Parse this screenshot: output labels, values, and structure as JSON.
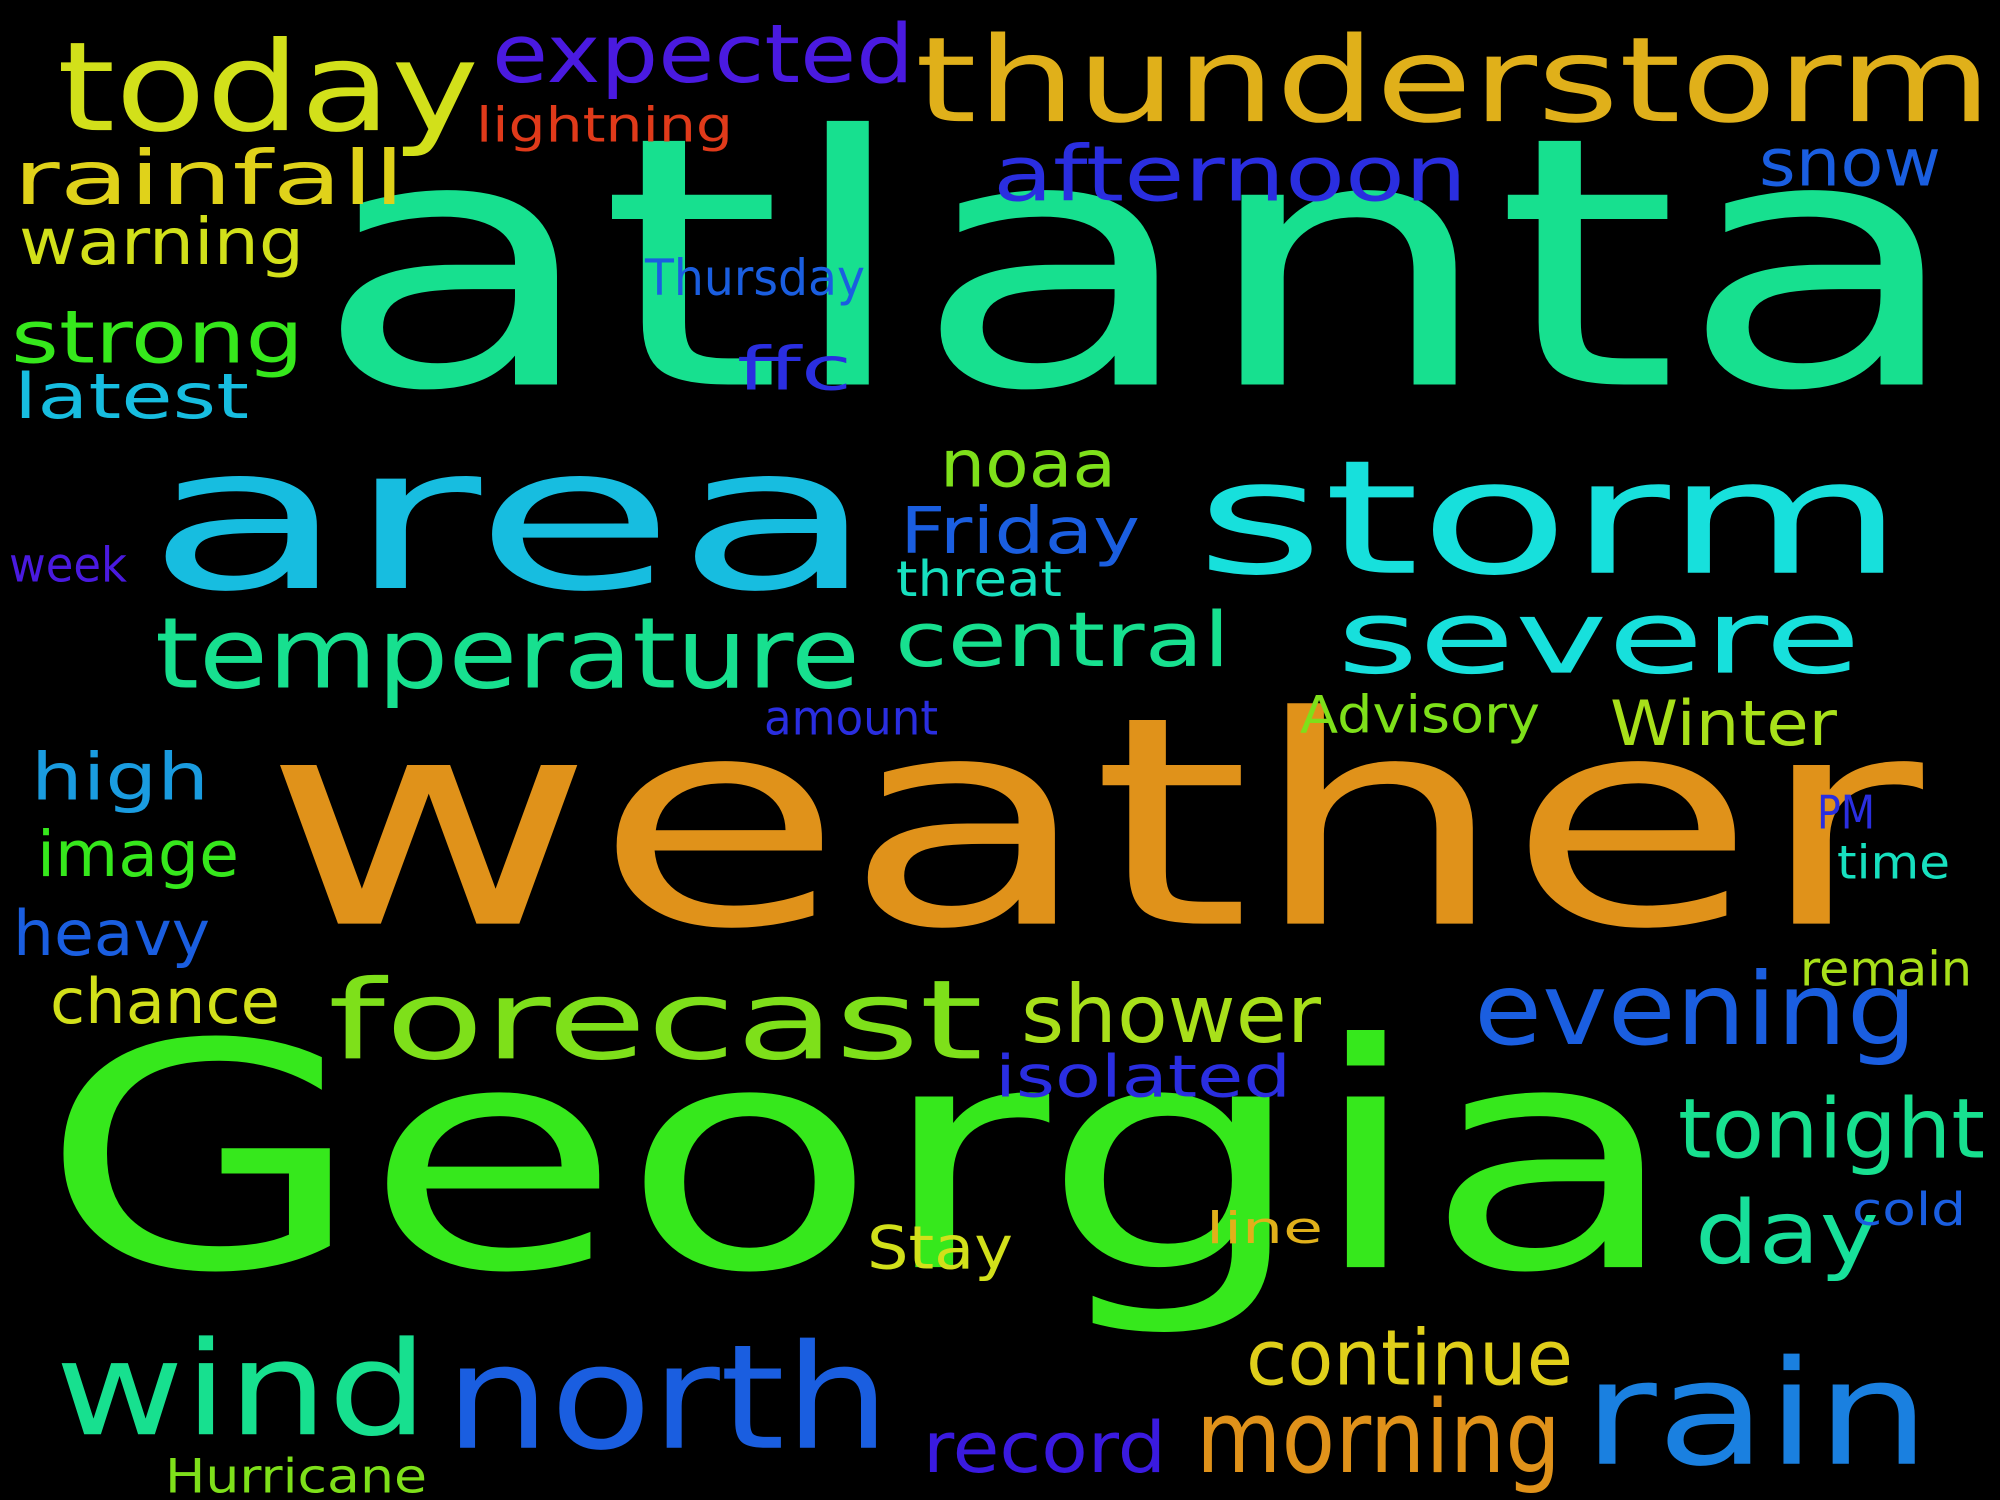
{
  "words": [
    {
      "text": "atlanta",
      "color": "#17e08f"
    },
    {
      "text": "weather",
      "color": "#e0921a"
    },
    {
      "text": "Georgia",
      "color": "#36e81c"
    },
    {
      "text": "area",
      "color": "#17bde0"
    },
    {
      "text": "storm",
      "color": "#17e0dc"
    },
    {
      "text": "thunderstorm",
      "color": "#e0b01a"
    },
    {
      "text": "today",
      "color": "#d2e01a"
    },
    {
      "text": "forecast",
      "color": "#7ee01a"
    },
    {
      "text": "north",
      "color": "#1a5ee0"
    },
    {
      "text": "wind",
      "color": "#17e08f"
    },
    {
      "text": "rain",
      "color": "#1a80e0"
    },
    {
      "text": "severe",
      "color": "#17e0dc"
    },
    {
      "text": "temperature",
      "color": "#17e08f"
    },
    {
      "text": "evening",
      "color": "#1a5ee0"
    },
    {
      "text": "afternoon",
      "color": "#2a2ee0"
    },
    {
      "text": "expected",
      "color": "#4a1ae0"
    },
    {
      "text": "morning",
      "color": "#e0921a"
    },
    {
      "text": "shower",
      "color": "#a8e01a"
    },
    {
      "text": "day",
      "color": "#17e09a"
    },
    {
      "text": "tonight",
      "color": "#17e08f"
    },
    {
      "text": "central",
      "color": "#17e08f"
    },
    {
      "text": "continue",
      "color": "#e0cf1a"
    },
    {
      "text": "rainfall",
      "color": "#e0d21a"
    },
    {
      "text": "strong",
      "color": "#36e81c"
    },
    {
      "text": "snow",
      "color": "#1a5ee0"
    },
    {
      "text": "record",
      "color": "#3a1ae0"
    },
    {
      "text": "noaa",
      "color": "#7ee01a"
    },
    {
      "text": "Friday",
      "color": "#1a5ee0"
    },
    {
      "text": "warning",
      "color": "#d2e01a"
    },
    {
      "text": "latest",
      "color": "#17bde0"
    },
    {
      "text": "high",
      "color": "#1a9ce0"
    },
    {
      "text": "image",
      "color": "#36e81c"
    },
    {
      "text": "heavy",
      "color": "#1a5ee0"
    },
    {
      "text": "chance",
      "color": "#d2e01a"
    },
    {
      "text": "isolated",
      "color": "#2a2ee0"
    },
    {
      "text": "ffc",
      "color": "#2a2ee0"
    },
    {
      "text": "Winter",
      "color": "#a8e01a"
    },
    {
      "text": "Stay",
      "color": "#d2e01a"
    },
    {
      "text": "Advisory",
      "color": "#7ee01a"
    },
    {
      "text": "Thursday",
      "color": "#1a5ee0"
    },
    {
      "text": "threat",
      "color": "#17e0bf"
    },
    {
      "text": "amount",
      "color": "#2a2ee0"
    },
    {
      "text": "lightning",
      "color": "#e03a1a"
    },
    {
      "text": "week",
      "color": "#4a1ae0"
    },
    {
      "text": "Hurricane",
      "color": "#7ee01a"
    },
    {
      "text": "remain",
      "color": "#a8e01a"
    },
    {
      "text": "time",
      "color": "#17e0bf"
    },
    {
      "text": "cold",
      "color": "#1a5ee0"
    },
    {
      "text": "PM",
      "color": "#2a2ee0"
    },
    {
      "text": "line",
      "color": "#e0b01a"
    }
  ]
}
